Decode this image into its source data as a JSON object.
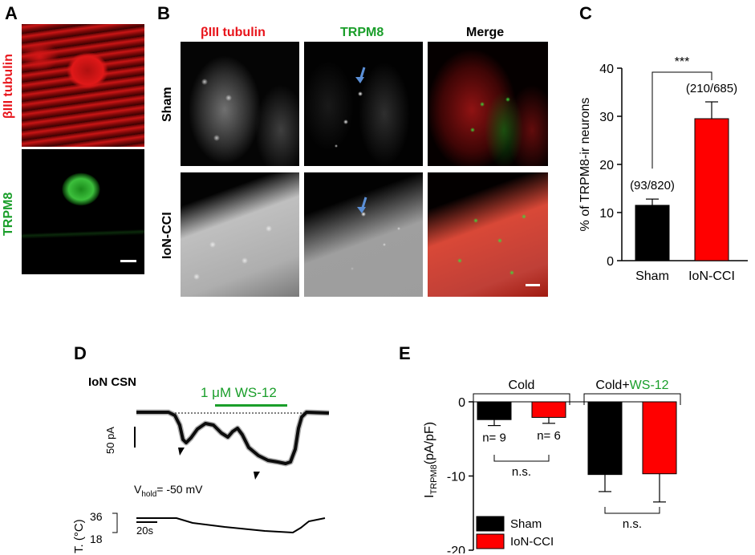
{
  "panels": {
    "A": {
      "letter": "A",
      "label_top": "βIII tubulin",
      "label_bottom": "TRPM8"
    },
    "B": {
      "letter": "B",
      "col_labels": [
        "βIII tubulin",
        "TRPM8",
        "Merge"
      ],
      "row_labels": [
        "Sham",
        "IoN-CCI"
      ]
    },
    "C": {
      "letter": "C"
    },
    "D": {
      "letter": "D",
      "title": "IoN CSN",
      "drug": "1 μM WS-12",
      "scale_current": "50 pA",
      "vhold_prefix": "V",
      "vhold_sub": "hold",
      "vhold_value": "= -50 mV",
      "temp_axis": "T. (°C)",
      "temp_high": "36",
      "temp_low": "18",
      "scale_time": "20s"
    },
    "E": {
      "letter": "E"
    }
  },
  "colors": {
    "red": "#e8141b",
    "green": "#1a9e2a",
    "blue_arrow": "#5b8fd6",
    "black": "#000000"
  },
  "chart_data": [
    {
      "panel": "C",
      "type": "bar",
      "categories": [
        "Sham",
        "IoN-CCI"
      ],
      "values": [
        11.5,
        29.5
      ],
      "errors": [
        1.3,
        3.5
      ],
      "counts": [
        "(93/820)",
        "(210/685)"
      ],
      "bar_colors": [
        "#000000",
        "#ff0000"
      ],
      "ylabel": "% of TRPM8-ir neurons",
      "ylim": [
        0,
        40
      ],
      "yticks": [
        0,
        10,
        20,
        30,
        40
      ],
      "significance": "***"
    },
    {
      "panel": "E",
      "type": "bar",
      "groups": [
        {
          "label_prefix": "Cold",
          "label_suffix": ""
        },
        {
          "label_prefix": "Cold+",
          "label_suffix": "WS-12"
        }
      ],
      "series": [
        {
          "name": "Sham",
          "color": "#000000",
          "values": [
            -2.4,
            -9.8
          ],
          "errors": [
            0.8,
            2.3
          ]
        },
        {
          "name": "IoN-CCI",
          "color": "#ff0000",
          "values": [
            -2.1,
            -9.7
          ],
          "errors": [
            0.8,
            3.8
          ]
        }
      ],
      "n_labels": [
        "n= 9",
        "n= 6"
      ],
      "ns_label": "n.s.",
      "ylabel_prefix": "I",
      "ylabel_sub": "TRPM8",
      "ylabel_suffix": "(pA/pF)",
      "ylim": [
        -20,
        0
      ],
      "yticks": [
        0,
        -10,
        -20
      ]
    }
  ]
}
